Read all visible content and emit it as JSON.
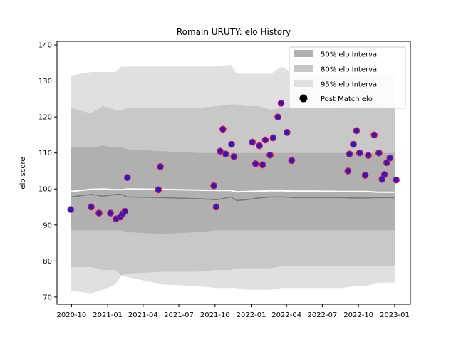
{
  "chart_data": {
    "type": "line",
    "title": "Romain URUTY: elo History",
    "xlabel": "",
    "ylabel": "elo score",
    "ylim": [
      68,
      141
    ],
    "xlim": [
      "2020-08-25",
      "2023-02-10"
    ],
    "yticks": [
      70,
      80,
      90,
      100,
      110,
      120,
      130,
      140
    ],
    "xticks": [
      {
        "date": "2020-10-01",
        "label": "2020-10"
      },
      {
        "date": "2021-01-01",
        "label": "2021-01"
      },
      {
        "date": "2021-04-01",
        "label": "2021-04"
      },
      {
        "date": "2021-07-01",
        "label": "2021-07"
      },
      {
        "date": "2021-10-01",
        "label": "2021-10"
      },
      {
        "date": "2022-01-01",
        "label": "2022-01"
      },
      {
        "date": "2022-04-01",
        "label": "2022-04"
      },
      {
        "date": "2022-07-01",
        "label": "2022-07"
      },
      {
        "date": "2022-10-01",
        "label": "2022-10"
      },
      {
        "date": "2023-01-01",
        "label": "2023-01"
      }
    ],
    "legend": {
      "placement": "top-right",
      "entries": [
        {
          "label": "50% elo Interval",
          "kind": "patch",
          "color": "#b0b0b0"
        },
        {
          "label": "80% elo Interval",
          "kind": "patch",
          "color": "#c8c8c8"
        },
        {
          "label": "95% elo Interval",
          "kind": "patch",
          "color": "#e0e0e0"
        },
        {
          "label": "Post Match elo",
          "kind": "marker",
          "color": "#000000"
        }
      ]
    },
    "band_dates": [
      "2020-09-29",
      "2020-11-20",
      "2020-12-20",
      "2021-01-20",
      "2021-02-05",
      "2021-02-20",
      "2021-05-20",
      "2021-08-20",
      "2021-10-05",
      "2021-11-10",
      "2021-11-25",
      "2021-12-20",
      "2022-01-20",
      "2022-02-20",
      "2022-03-20",
      "2022-04-20",
      "2022-06-20",
      "2022-08-20",
      "2022-09-20",
      "2022-10-20",
      "2022-11-20",
      "2023-01-01"
    ],
    "bands": {
      "p95_upper": [
        131.5,
        132.5,
        132.5,
        132.5,
        134,
        134,
        134,
        134,
        134,
        134.5,
        132,
        132,
        132,
        132,
        134,
        132,
        132,
        132,
        132,
        132,
        132,
        132
      ],
      "p80_upper": [
        122.5,
        121,
        123,
        122,
        122,
        122.5,
        122.5,
        122.5,
        123,
        123.5,
        123.5,
        123,
        123,
        122,
        122.5,
        122.5,
        122.5,
        123,
        123,
        123,
        123,
        122.5
      ],
      "p50_upper": [
        111.5,
        111.5,
        112,
        111.5,
        111.5,
        111,
        110.5,
        110,
        110,
        110,
        110,
        110,
        110,
        110,
        110,
        110,
        110,
        110,
        110,
        110,
        110,
        110
      ],
      "median": [
        99.3,
        99.9,
        100,
        99.8,
        99.8,
        100,
        99.9,
        99.7,
        99.6,
        99.6,
        99.2,
        99.3,
        99.4,
        99.5,
        99.5,
        99.4,
        99.4,
        99.3,
        99.3,
        99.3,
        99.1,
        99.1
      ],
      "p50_lower": [
        88.5,
        88.5,
        88.5,
        88.5,
        88.5,
        88,
        87.5,
        88,
        88.5,
        88.5,
        88.5,
        88.5,
        88.5,
        88.5,
        88.5,
        88.5,
        88.5,
        88.5,
        88.5,
        88.5,
        88.5,
        88.5
      ],
      "p80_lower": [
        78.3,
        78.3,
        77.5,
        77.5,
        76,
        76.5,
        77,
        77,
        77.5,
        77.5,
        78,
        78,
        78,
        78,
        78.5,
        78.5,
        78.5,
        78.5,
        78.5,
        78.5,
        78.5,
        78.5
      ],
      "p95_lower": [
        71.7,
        71,
        72,
        73.5,
        76,
        75.5,
        73.5,
        73,
        72.5,
        72.5,
        72.5,
        72,
        72,
        72,
        72.5,
        72.5,
        72.5,
        72.5,
        73,
        73,
        74,
        74
      ]
    },
    "secondary_line": {
      "x": [
        "2020-09-29",
        "2020-11-20",
        "2020-12-20",
        "2021-01-20",
        "2021-02-05",
        "2021-02-20",
        "2021-05-20",
        "2021-08-20",
        "2021-10-05",
        "2021-11-10",
        "2021-11-25",
        "2021-12-20",
        "2022-01-20",
        "2022-02-20",
        "2022-03-20",
        "2022-04-20",
        "2022-06-20",
        "2022-08-20",
        "2022-09-20",
        "2022-10-20",
        "2022-11-20",
        "2023-01-01"
      ],
      "y": [
        97.8,
        98.5,
        98,
        98.5,
        98.5,
        97.8,
        97.6,
        97.3,
        97,
        97.8,
        96.8,
        97,
        97.5,
        97.8,
        97.8,
        97.6,
        97.6,
        97.6,
        97.5,
        97.5,
        97.6,
        97.6
      ]
    },
    "series": [
      {
        "name": "Post Match elo",
        "x": [
          "2020-09-29",
          "2020-11-20",
          "2020-12-10",
          "2021-01-08",
          "2021-01-22",
          "2021-02-02",
          "2021-02-08",
          "2021-02-14",
          "2021-02-20",
          "2021-05-10",
          "2021-05-15",
          "2021-09-28",
          "2021-10-04",
          "2021-10-14",
          "2021-10-21",
          "2021-10-28",
          "2021-11-12",
          "2021-11-18",
          "2022-01-04",
          "2022-01-12",
          "2022-01-22",
          "2022-01-30",
          "2022-02-06",
          "2022-02-18",
          "2022-02-26",
          "2022-03-10",
          "2022-03-18",
          "2022-04-02",
          "2022-04-14",
          "2022-09-04",
          "2022-09-08",
          "2022-09-18",
          "2022-09-26",
          "2022-10-04",
          "2022-10-18",
          "2022-10-26",
          "2022-11-10",
          "2022-11-22",
          "2022-11-30",
          "2022-12-06",
          "2022-12-12",
          "2022-12-20",
          "2023-01-05"
        ],
        "y": [
          94.3,
          95,
          93.3,
          93.3,
          91.7,
          92.2,
          93.1,
          93.8,
          103.2,
          99.8,
          106.2,
          100.9,
          95,
          110.5,
          116.6,
          109.7,
          112.4,
          109,
          113,
          107,
          112,
          106.7,
          113.6,
          109.4,
          114.2,
          120,
          123.8,
          115.7,
          107.9,
          105,
          109.7,
          112.4,
          116.2,
          110,
          103.8,
          109.3,
          115,
          110,
          102.7,
          104,
          107.3,
          108.6,
          102.5
        ]
      }
    ]
  }
}
